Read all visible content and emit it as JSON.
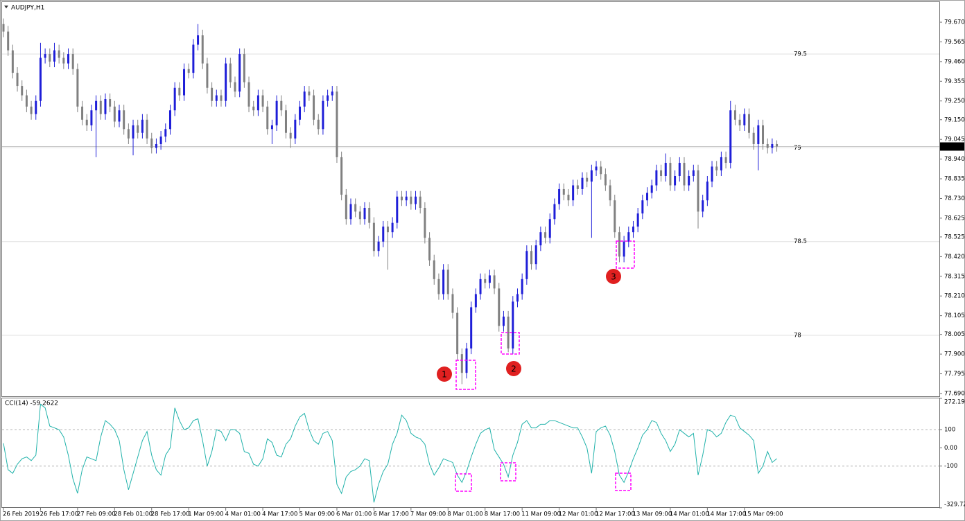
{
  "chart_data": [
    {
      "type": "candlestick",
      "title": "AUDJPY,H1",
      "up_color": "#1e1ed8",
      "down_color": "#808080",
      "ylim": [
        77.675,
        79.781
      ],
      "yticks": [
        {
          "value": 79.67,
          "label": "79.670"
        },
        79.565,
        {
          "value": 79.46,
          "label": "79.460"
        },
        79.355,
        {
          "value": 79.25,
          "label": "79.250"
        },
        {
          "value": 79.15,
          "label": "79.150"
        },
        79.045,
        {
          "value": 78.94,
          "label": "78.940"
        },
        78.835,
        {
          "value": 78.73,
          "label": "78.730"
        },
        78.625,
        78.525,
        {
          "value": 78.42,
          "label": "78.420"
        },
        78.315,
        {
          "value": 78.21,
          "label": "78.210"
        },
        78.105,
        78.005,
        {
          "value": 77.9,
          "label": "77.900"
        },
        77.795,
        {
          "value": 77.69,
          "label": "77.690"
        }
      ],
      "levels": [
        79.5,
        79,
        78.5,
        78
      ],
      "last_price": 79.007,
      "categories": [
        "26 Feb 2019",
        null,
        null,
        null,
        null,
        null,
        null,
        null,
        "26 Feb 17:00",
        null,
        null,
        null,
        null,
        null,
        null,
        null,
        "27 Feb 09:00",
        null,
        null,
        null,
        null,
        null,
        null,
        null,
        "28 Feb 01:00",
        null,
        null,
        null,
        null,
        null,
        null,
        null,
        "28 Feb 17:00",
        null,
        null,
        null,
        null,
        null,
        null,
        null,
        "1 Mar 09:00",
        null,
        null,
        null,
        null,
        null,
        null,
        null,
        "4 Mar 01:00",
        null,
        null,
        null,
        null,
        null,
        null,
        null,
        "4 Mar 17:00",
        null,
        null,
        null,
        null,
        null,
        null,
        null,
        "5 Mar 09:00",
        null,
        null,
        null,
        null,
        null,
        null,
        null,
        "6 Mar 01:00",
        null,
        null,
        null,
        null,
        null,
        null,
        null,
        "6 Mar 17:00",
        null,
        null,
        null,
        null,
        null,
        null,
        null,
        "7 Mar 09:00",
        null,
        null,
        null,
        null,
        null,
        null,
        null,
        "8 Mar 01:00",
        null,
        null,
        null,
        null,
        null,
        null,
        null,
        "8 Mar 17:00",
        null,
        null,
        null,
        null,
        null,
        null,
        null,
        "11 Mar 09:00",
        null,
        null,
        null,
        null,
        null,
        null,
        null,
        "12 Mar 01:00",
        null,
        null,
        null,
        null,
        null,
        null,
        null,
        "12 Mar 17:00",
        null,
        null,
        null,
        null,
        null,
        null,
        null,
        "13 Mar 09:00",
        null,
        null,
        null,
        null,
        null,
        null,
        null,
        "14 Mar 01:00",
        null,
        null,
        null,
        null,
        null,
        null,
        null,
        "14 Mar 17:00",
        null,
        null,
        null,
        null,
        null,
        null,
        null,
        "15 Mar 09:00",
        null,
        null,
        null,
        null,
        null,
        null,
        null
      ],
      "open": [
        79.66,
        79.62,
        79.52,
        79.4,
        79.33,
        79.28,
        79.22,
        79.18,
        79.25,
        79.48,
        79.5,
        79.46,
        79.52,
        79.48,
        79.45,
        79.5,
        79.42,
        79.22,
        79.15,
        79.12,
        79.2,
        79.25,
        79.18,
        79.26,
        79.22,
        79.14,
        79.2,
        79.1,
        79.05,
        79.12,
        79.08,
        79.15,
        79.05,
        79.0,
        79.02,
        79.06,
        79.1,
        79.2,
        79.32,
        79.28,
        79.42,
        79.4,
        79.55,
        79.6,
        79.45,
        79.32,
        79.25,
        79.28,
        79.25,
        79.45,
        79.35,
        79.3,
        79.5,
        79.35,
        79.22,
        79.2,
        79.28,
        79.22,
        79.1,
        79.12,
        79.25,
        79.2,
        79.08,
        79.05,
        79.15,
        79.22,
        79.3,
        79.28,
        79.15,
        79.1,
        79.25,
        79.28,
        79.3,
        78.95,
        78.75,
        78.62,
        78.7,
        78.66,
        78.62,
        78.68,
        78.6,
        78.45,
        78.5,
        78.58,
        78.55,
        78.6,
        78.74,
        78.72,
        78.74,
        78.7,
        78.74,
        78.68,
        78.52,
        78.4,
        78.3,
        78.22,
        78.35,
        78.22,
        78.12,
        77.9,
        77.8,
        77.93,
        78.15,
        78.22,
        78.3,
        78.28,
        78.32,
        78.25,
        78.05,
        78.1,
        77.93,
        78.18,
        78.22,
        78.3,
        78.45,
        78.38,
        78.48,
        78.55,
        78.52,
        78.62,
        78.7,
        78.78,
        78.75,
        78.72,
        78.8,
        78.78,
        78.84,
        78.82,
        78.88,
        78.9,
        78.86,
        78.8,
        78.72,
        78.55,
        78.42,
        78.5,
        78.55,
        78.58,
        78.65,
        78.72,
        78.76,
        78.8,
        78.88,
        78.85,
        78.92,
        78.8,
        78.85,
        78.92,
        78.8,
        78.85,
        78.88,
        78.66,
        78.72,
        78.82,
        78.9,
        78.88,
        78.95,
        78.92,
        79.2,
        79.15,
        79.12,
        79.18,
        79.08,
        79.02,
        79.12,
        79.02,
        79.0,
        79.02
      ],
      "high": [
        79.69,
        79.65,
        79.55,
        79.43,
        79.36,
        79.31,
        79.25,
        79.28,
        79.56,
        79.53,
        79.53,
        79.56,
        79.55,
        79.51,
        79.53,
        79.53,
        79.45,
        79.25,
        79.18,
        79.23,
        79.28,
        79.28,
        79.29,
        79.29,
        79.25,
        79.23,
        79.23,
        79.13,
        79.15,
        79.15,
        79.18,
        79.18,
        79.08,
        79.05,
        79.09,
        79.13,
        79.23,
        79.35,
        79.35,
        79.45,
        79.45,
        79.58,
        79.66,
        79.63,
        79.48,
        79.35,
        79.31,
        79.31,
        79.48,
        79.48,
        79.38,
        79.53,
        79.53,
        79.38,
        79.25,
        79.31,
        79.31,
        79.25,
        79.15,
        79.28,
        79.28,
        79.23,
        79.11,
        79.18,
        79.25,
        79.33,
        79.33,
        79.31,
        79.18,
        79.28,
        79.31,
        79.33,
        79.33,
        78.98,
        78.78,
        78.73,
        78.73,
        78.69,
        78.71,
        78.71,
        78.63,
        78.53,
        78.61,
        78.61,
        78.63,
        78.77,
        78.77,
        78.77,
        78.77,
        78.77,
        78.77,
        78.71,
        78.55,
        78.43,
        78.33,
        78.38,
        78.38,
        78.25,
        78.15,
        77.93,
        77.96,
        78.18,
        78.25,
        78.33,
        78.33,
        78.35,
        78.35,
        78.28,
        78.13,
        78.13,
        78.21,
        78.25,
        78.33,
        78.48,
        78.48,
        78.51,
        78.58,
        78.58,
        78.65,
        78.73,
        78.81,
        78.81,
        78.78,
        78.83,
        78.83,
        78.87,
        78.87,
        78.91,
        78.93,
        78.93,
        78.89,
        78.83,
        78.75,
        78.58,
        78.53,
        78.58,
        78.61,
        78.68,
        78.75,
        78.79,
        78.83,
        78.91,
        78.91,
        78.97,
        78.95,
        78.88,
        78.95,
        78.95,
        78.88,
        78.91,
        78.91,
        78.75,
        78.85,
        78.93,
        78.93,
        78.98,
        78.98,
        79.25,
        79.23,
        79.18,
        79.21,
        79.21,
        79.11,
        79.15,
        79.15,
        79.05,
        79.05,
        79.04
      ],
      "low": [
        79.59,
        79.49,
        79.37,
        79.3,
        79.25,
        79.19,
        79.15,
        79.15,
        79.22,
        79.45,
        79.43,
        79.43,
        79.45,
        79.42,
        79.42,
        79.39,
        79.19,
        79.12,
        79.09,
        79.09,
        78.95,
        79.15,
        79.15,
        79.19,
        79.11,
        79.11,
        79.07,
        79.02,
        78.96,
        79.05,
        79.05,
        79.02,
        78.97,
        78.97,
        78.99,
        79.03,
        79.07,
        79.17,
        79.25,
        79.25,
        79.37,
        79.37,
        79.52,
        79.42,
        79.29,
        79.22,
        79.22,
        79.22,
        79.22,
        79.32,
        79.27,
        79.27,
        79.32,
        79.19,
        79.17,
        79.17,
        79.19,
        79.07,
        79.02,
        79.09,
        79.17,
        79.05,
        79.0,
        79.02,
        79.12,
        79.19,
        79.25,
        79.12,
        79.07,
        79.07,
        79.22,
        79.25,
        78.92,
        78.72,
        78.59,
        78.59,
        78.63,
        78.59,
        78.59,
        78.57,
        78.42,
        78.42,
        78.47,
        78.35,
        78.52,
        78.57,
        78.69,
        78.69,
        78.67,
        78.67,
        78.65,
        78.49,
        78.37,
        78.27,
        78.19,
        78.19,
        78.19,
        78.09,
        77.87,
        77.74,
        77.77,
        77.9,
        78.12,
        78.19,
        78.25,
        78.25,
        78.22,
        78.02,
        78.02,
        77.91,
        77.9,
        78.15,
        78.19,
        78.27,
        78.35,
        78.35,
        78.45,
        78.49,
        78.49,
        78.59,
        78.67,
        78.72,
        78.69,
        78.69,
        78.75,
        78.75,
        78.79,
        78.52,
        78.85,
        78.83,
        78.77,
        78.69,
        78.52,
        78.39,
        78.39,
        78.47,
        78.52,
        78.55,
        78.62,
        78.69,
        78.73,
        78.77,
        78.82,
        78.82,
        78.77,
        78.77,
        78.82,
        78.77,
        78.77,
        78.82,
        78.57,
        78.63,
        78.69,
        78.79,
        78.85,
        78.85,
        78.89,
        78.89,
        79.12,
        79.09,
        79.09,
        79.05,
        78.99,
        78.88,
        78.99,
        78.97,
        78.97,
        78.98
      ],
      "close": [
        79.62,
        79.52,
        79.4,
        79.33,
        79.28,
        79.22,
        79.18,
        79.25,
        79.48,
        79.5,
        79.46,
        79.52,
        79.48,
        79.45,
        79.5,
        79.42,
        79.22,
        79.15,
        79.12,
        79.2,
        79.25,
        79.18,
        79.26,
        79.22,
        79.14,
        79.2,
        79.1,
        79.05,
        79.12,
        79.08,
        79.15,
        79.05,
        79.0,
        79.02,
        79.06,
        79.1,
        79.2,
        79.32,
        79.28,
        79.42,
        79.4,
        79.55,
        79.6,
        79.45,
        79.32,
        79.25,
        79.28,
        79.25,
        79.45,
        79.35,
        79.3,
        79.5,
        79.35,
        79.22,
        79.2,
        79.28,
        79.22,
        79.1,
        79.12,
        79.25,
        79.2,
        79.08,
        79.05,
        79.15,
        79.22,
        79.3,
        79.28,
        79.15,
        79.1,
        79.25,
        79.28,
        79.3,
        78.95,
        78.75,
        78.62,
        78.7,
        78.66,
        78.62,
        78.68,
        78.6,
        78.45,
        78.5,
        78.58,
        78.55,
        78.6,
        78.74,
        78.72,
        78.74,
        78.7,
        78.74,
        78.68,
        78.52,
        78.4,
        78.3,
        78.22,
        78.35,
        78.22,
        78.12,
        77.9,
        77.8,
        77.93,
        78.15,
        78.22,
        78.3,
        78.28,
        78.32,
        78.25,
        78.05,
        78.1,
        77.93,
        78.18,
        78.22,
        78.3,
        78.45,
        78.38,
        78.48,
        78.55,
        78.52,
        78.62,
        78.7,
        78.78,
        78.75,
        78.72,
        78.8,
        78.78,
        78.84,
        78.82,
        78.88,
        78.9,
        78.86,
        78.8,
        78.72,
        78.55,
        78.42,
        78.5,
        78.55,
        78.58,
        78.65,
        78.72,
        78.76,
        78.8,
        78.88,
        78.85,
        78.92,
        78.8,
        78.85,
        78.92,
        78.8,
        78.85,
        78.88,
        78.66,
        78.72,
        78.82,
        78.9,
        78.88,
        78.95,
        78.92,
        79.2,
        79.15,
        79.12,
        79.18,
        79.08,
        79.02,
        79.12,
        79.02,
        79.0,
        79.02,
        79.007
      ]
    },
    {
      "type": "line",
      "title": "CCI(14) -59.2622",
      "color": "#20b2aa",
      "ylim": [
        -329.72,
        272.1999
      ],
      "yticks": [
        272.1999,
        100,
        {
          "value": 0,
          "label": "0.00"
        },
        -100,
        {
          "value": -329.72,
          "label": "-329.7200"
        }
      ],
      "levels": [
        100,
        -100
      ],
      "values": [
        25,
        -120,
        -140,
        -90,
        -60,
        -50,
        -70,
        -40,
        240,
        220,
        120,
        110,
        100,
        60,
        -40,
        -170,
        -250,
        -120,
        -50,
        -60,
        -70,
        60,
        150,
        130,
        100,
        40,
        -120,
        -230,
        -140,
        -50,
        40,
        90,
        -40,
        -120,
        -150,
        -40,
        0,
        220,
        150,
        100,
        110,
        150,
        160,
        40,
        -100,
        -20,
        100,
        90,
        40,
        100,
        100,
        80,
        -20,
        -30,
        -90,
        -100,
        -60,
        50,
        30,
        -40,
        -50,
        20,
        50,
        120,
        170,
        190,
        100,
        40,
        20,
        80,
        90,
        40,
        -200,
        -250,
        -160,
        -130,
        -120,
        -100,
        -60,
        -70,
        -300,
        -200,
        -130,
        -90,
        20,
        80,
        180,
        150,
        80,
        60,
        50,
        20,
        -90,
        -150,
        -110,
        -60,
        -70,
        -80,
        -150,
        -190,
        -130,
        -50,
        20,
        80,
        100,
        110,
        -10,
        -50,
        -90,
        -160,
        -40,
        30,
        130,
        150,
        110,
        110,
        130,
        130,
        150,
        150,
        140,
        130,
        120,
        110,
        110,
        60,
        0,
        -140,
        90,
        110,
        120,
        70,
        -20,
        -150,
        -190,
        -130,
        -60,
        0,
        70,
        100,
        150,
        140,
        80,
        40,
        -20,
        20,
        100,
        80,
        60,
        80,
        -150,
        -40,
        100,
        90,
        60,
        80,
        140,
        180,
        170,
        110,
        90,
        70,
        40,
        -140,
        -100,
        -20,
        -80,
        -59.2622
      ]
    }
  ],
  "annotations": [
    "1",
    "2",
    "3"
  ]
}
